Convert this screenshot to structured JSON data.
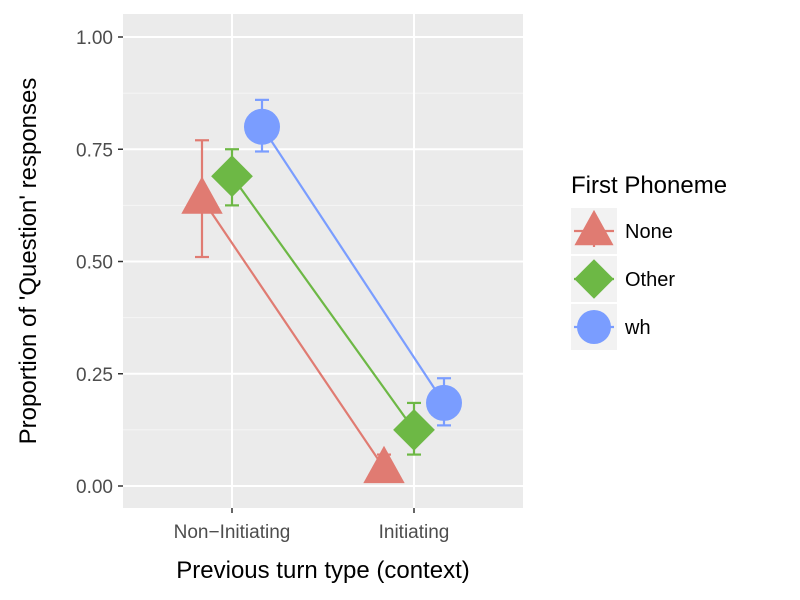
{
  "chart_data": {
    "type": "line",
    "categories": [
      "Non−Initiating",
      "Initiating"
    ],
    "xlabel": "Previous turn type (context)",
    "ylabel": "Proportion of 'Question' responses",
    "ylim": [
      0,
      1.0
    ],
    "yticks": [
      "0.00",
      "0.25",
      "0.50",
      "0.75",
      "1.00"
    ],
    "ytick_values": [
      0,
      0.25,
      0.5,
      0.75,
      1.0
    ],
    "grid": true,
    "legend": {
      "title": "First Phoneme",
      "placement": "right"
    },
    "series": [
      {
        "name": "None",
        "marker": "triangle",
        "color": "#E07B72",
        "values": [
          0.64,
          0.04
        ],
        "error": [
          [
            0.51,
            0.77
          ],
          [
            0.01,
            0.07
          ]
        ]
      },
      {
        "name": "Other",
        "marker": "diamond",
        "color": "#6DB845",
        "values": [
          0.69,
          0.125
        ],
        "error": [
          [
            0.625,
            0.75
          ],
          [
            0.07,
            0.185
          ]
        ]
      },
      {
        "name": "wh",
        "marker": "circle",
        "color": "#7A9DFF",
        "values": [
          0.8,
          0.185
        ],
        "error": [
          [
            0.745,
            0.86
          ],
          [
            0.135,
            0.24
          ]
        ]
      }
    ]
  }
}
